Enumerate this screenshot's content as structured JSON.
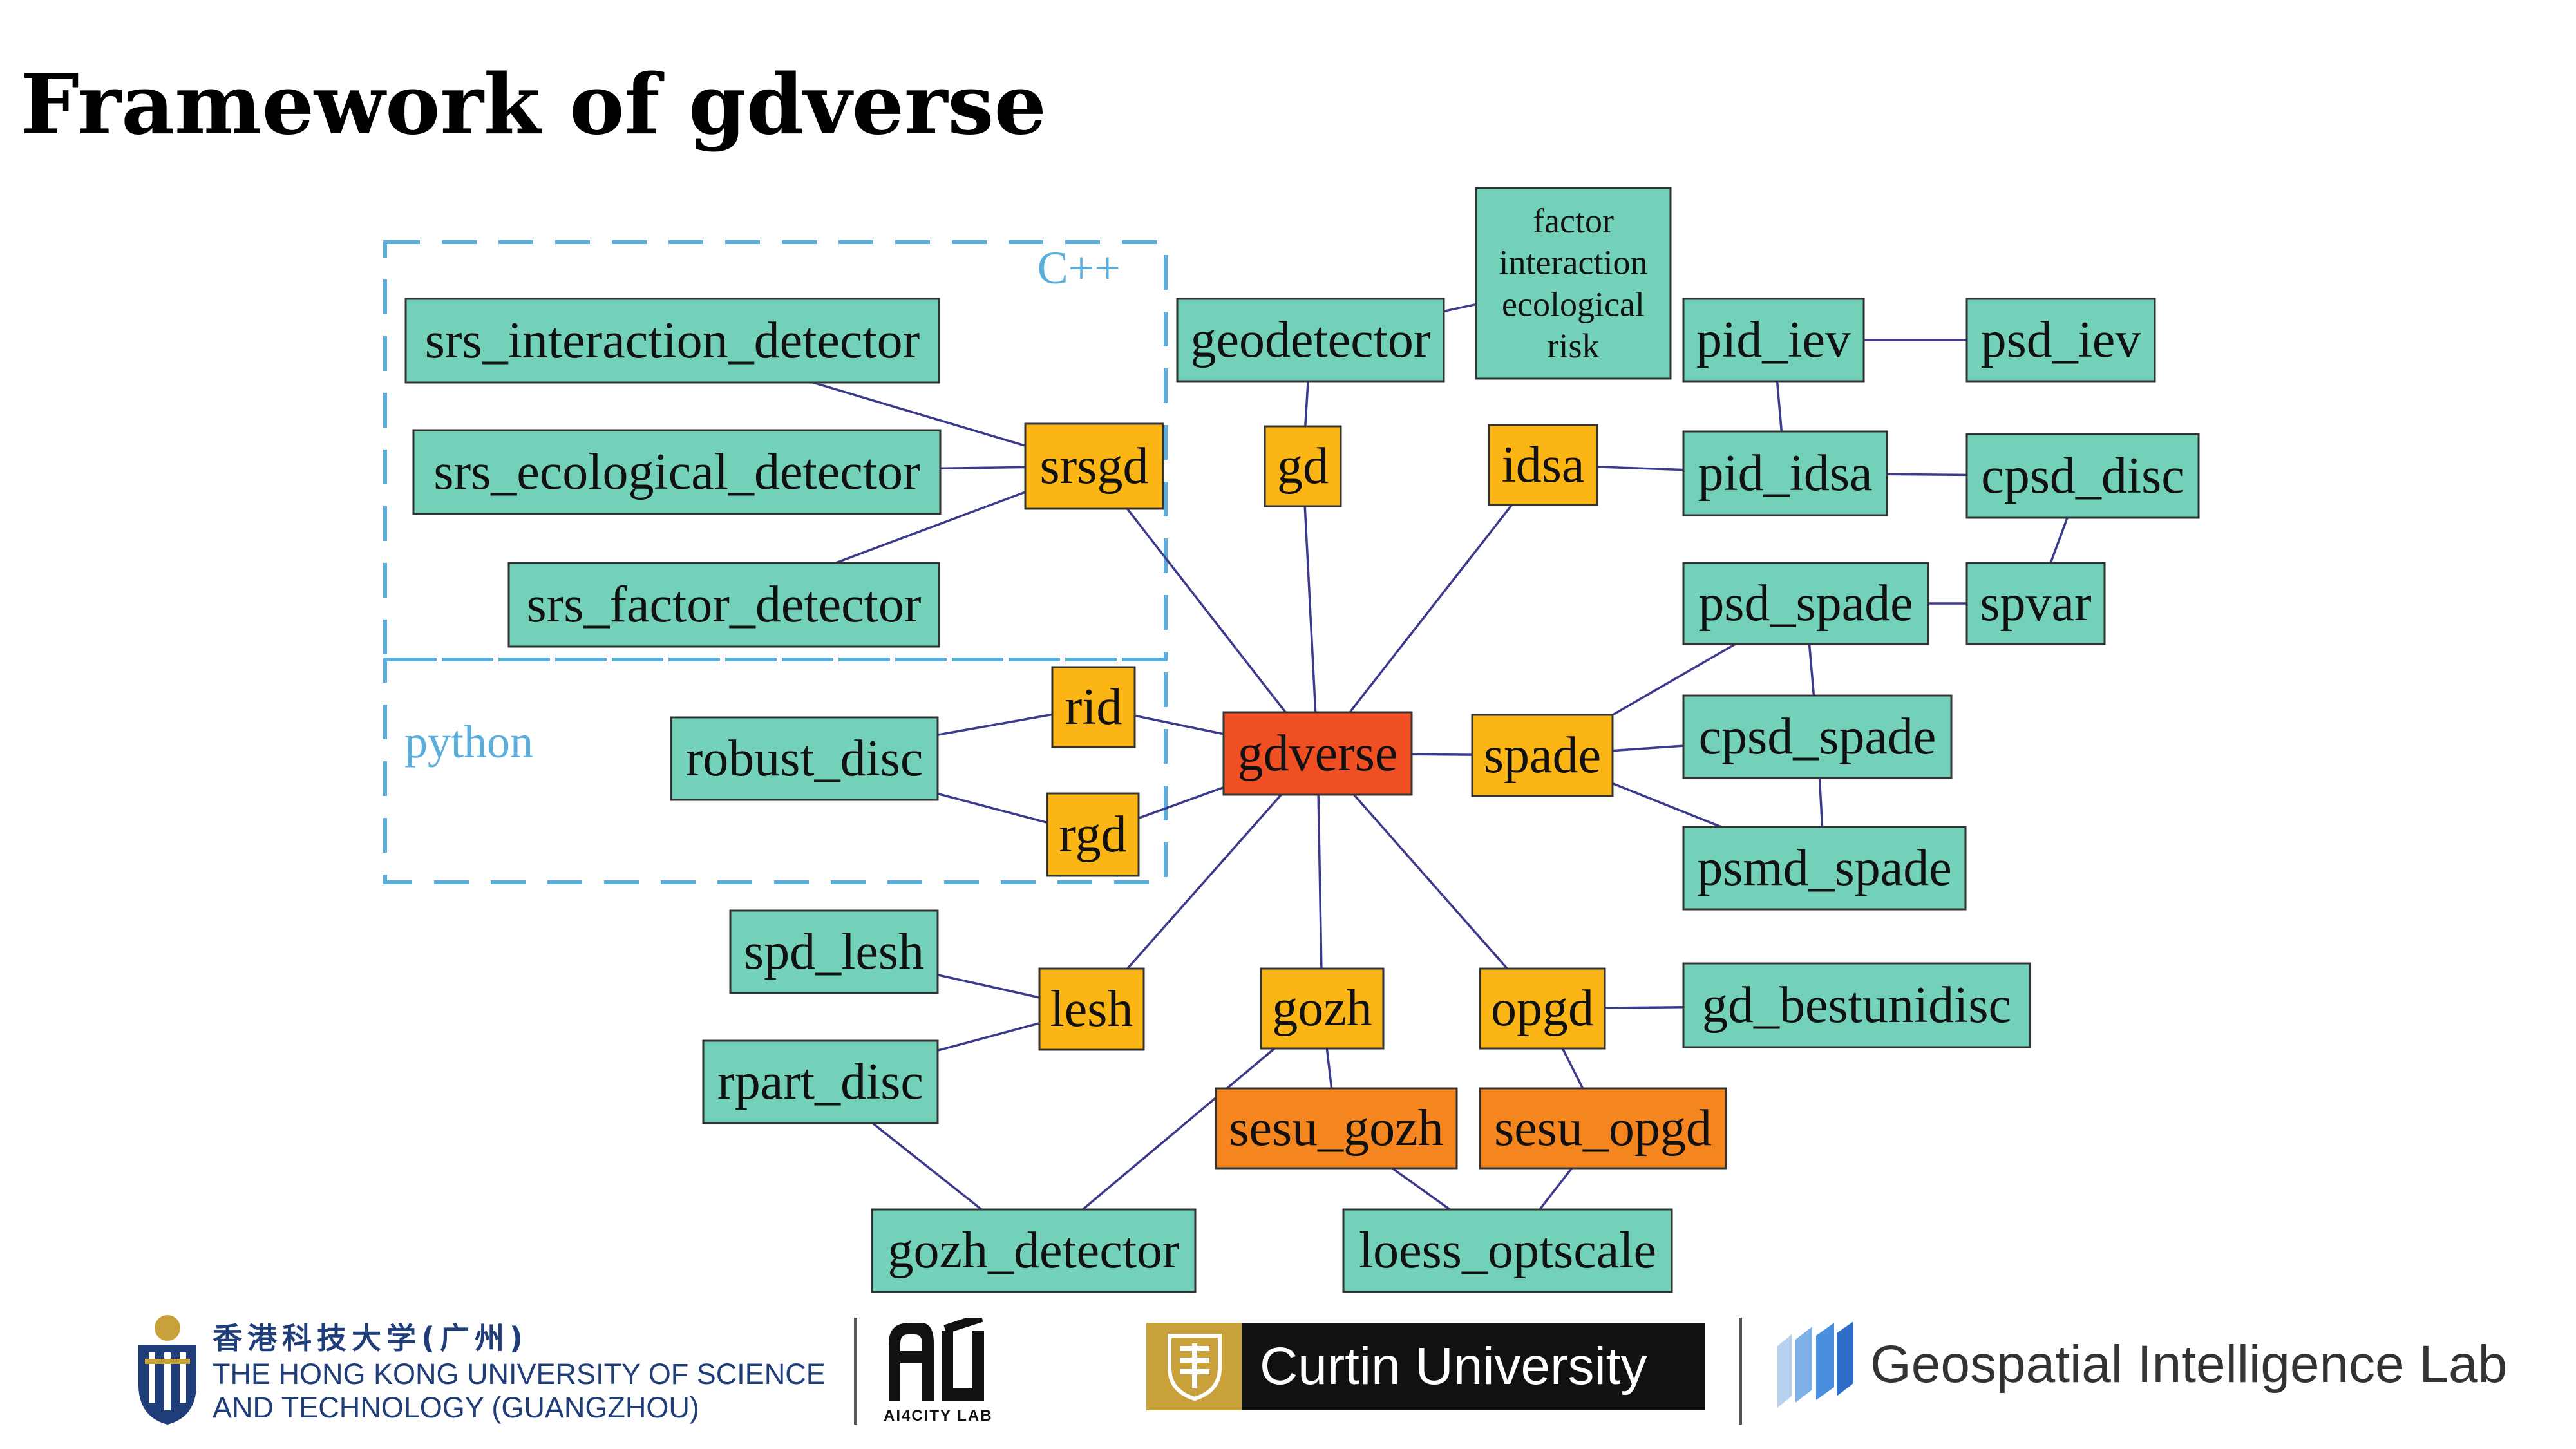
{
  "slide": {
    "title": "Framework of gdverse"
  },
  "diagram": {
    "regions": [
      {
        "id": "cpp",
        "label": "C++",
        "color": "#5aaede"
      },
      {
        "id": "python",
        "label": "python",
        "color": "#5aaede"
      }
    ],
    "node_colors": {
      "teal": "#72d1b8",
      "yellow": "#fbb515",
      "orange": "#f5861f",
      "red": "#f04e23"
    },
    "nodes": [
      {
        "id": "gdverse",
        "label": "gdverse",
        "color": "red"
      },
      {
        "id": "srsgd",
        "label": "srsgd",
        "color": "yellow"
      },
      {
        "id": "gd",
        "label": "gd",
        "color": "yellow"
      },
      {
        "id": "idsa",
        "label": "idsa",
        "color": "yellow"
      },
      {
        "id": "spade",
        "label": "spade",
        "color": "yellow"
      },
      {
        "id": "rid",
        "label": "rid",
        "color": "yellow"
      },
      {
        "id": "rgd",
        "label": "rgd",
        "color": "yellow"
      },
      {
        "id": "lesh",
        "label": "lesh",
        "color": "yellow"
      },
      {
        "id": "gozh",
        "label": "gozh",
        "color": "yellow"
      },
      {
        "id": "opgd",
        "label": "opgd",
        "color": "yellow"
      },
      {
        "id": "sesu_gozh",
        "label": "sesu_gozh",
        "color": "orange"
      },
      {
        "id": "sesu_opgd",
        "label": "sesu_opgd",
        "color": "orange"
      },
      {
        "id": "srs_interaction_detector",
        "label": "srs_interaction_detector",
        "color": "teal"
      },
      {
        "id": "srs_ecological_detector",
        "label": "srs_ecological_detector",
        "color": "teal"
      },
      {
        "id": "srs_factor_detector",
        "label": "srs_factor_detector",
        "color": "teal"
      },
      {
        "id": "geodetector",
        "label": "geodetector",
        "color": "teal"
      },
      {
        "id": "factor_box",
        "label": [
          "factor",
          "interaction",
          "ecological",
          "risk"
        ],
        "color": "teal"
      },
      {
        "id": "pid_iev",
        "label": "pid_iev",
        "color": "teal"
      },
      {
        "id": "psd_iev",
        "label": "psd_iev",
        "color": "teal"
      },
      {
        "id": "pid_idsa",
        "label": "pid_idsa",
        "color": "teal"
      },
      {
        "id": "cpsd_disc",
        "label": "cpsd_disc",
        "color": "teal"
      },
      {
        "id": "psd_spade",
        "label": "psd_spade",
        "color": "teal"
      },
      {
        "id": "spvar",
        "label": "spvar",
        "color": "teal"
      },
      {
        "id": "cpsd_spade",
        "label": "cpsd_spade",
        "color": "teal"
      },
      {
        "id": "psmd_spade",
        "label": "psmd_spade",
        "color": "teal"
      },
      {
        "id": "robust_disc",
        "label": "robust_disc",
        "color": "teal"
      },
      {
        "id": "spd_lesh",
        "label": "spd_lesh",
        "color": "teal"
      },
      {
        "id": "rpart_disc",
        "label": "rpart_disc",
        "color": "teal"
      },
      {
        "id": "gd_bestunidisc",
        "label": "gd_bestunidisc",
        "color": "teal"
      },
      {
        "id": "gozh_detector",
        "label": "gozh_detector",
        "color": "teal"
      },
      {
        "id": "loess_optscale",
        "label": "loess_optscale",
        "color": "teal"
      }
    ],
    "edges": [
      [
        "gdverse",
        "srsgd"
      ],
      [
        "gdverse",
        "gd"
      ],
      [
        "gdverse",
        "idsa"
      ],
      [
        "gdverse",
        "spade"
      ],
      [
        "gdverse",
        "rid"
      ],
      [
        "gdverse",
        "rgd"
      ],
      [
        "gdverse",
        "lesh"
      ],
      [
        "gdverse",
        "gozh"
      ],
      [
        "gdverse",
        "opgd"
      ],
      [
        "srsgd",
        "srs_interaction_detector"
      ],
      [
        "srsgd",
        "srs_ecological_detector"
      ],
      [
        "srsgd",
        "srs_factor_detector"
      ],
      [
        "gd",
        "geodetector"
      ],
      [
        "geodetector",
        "factor_box"
      ],
      [
        "idsa",
        "pid_idsa"
      ],
      [
        "pid_iev",
        "psd_iev"
      ],
      [
        "pid_iev",
        "pid_idsa"
      ],
      [
        "pid_idsa",
        "cpsd_disc"
      ],
      [
        "cpsd_disc",
        "spvar"
      ],
      [
        "psd_spade",
        "spvar"
      ],
      [
        "spade",
        "psd_spade"
      ],
      [
        "spade",
        "cpsd_spade"
      ],
      [
        "spade",
        "psmd_spade"
      ],
      [
        "psd_spade",
        "cpsd_spade"
      ],
      [
        "cpsd_spade",
        "psmd_spade"
      ],
      [
        "rid",
        "robust_disc"
      ],
      [
        "rgd",
        "robust_disc"
      ],
      [
        "lesh",
        "spd_lesh"
      ],
      [
        "lesh",
        "rpart_disc"
      ],
      [
        "rpart_disc",
        "gozh_detector"
      ],
      [
        "gozh",
        "gozh_detector"
      ],
      [
        "gozh",
        "sesu_gozh"
      ],
      [
        "opgd",
        "sesu_opgd"
      ],
      [
        "opgd",
        "gd_bestunidisc"
      ],
      [
        "sesu_gozh",
        "loess_optscale"
      ],
      [
        "sesu_opgd",
        "loess_optscale"
      ]
    ]
  },
  "footer": {
    "hkust": {
      "chinese": "香港科技大学(广州)",
      "line1": "THE HONG KONG UNIVERSITY OF SCIENCE",
      "line2": "AND TECHNOLOGY (GUANGZHOU)",
      "color": "#1f3d78"
    },
    "ai4city": {
      "label": "AI4CITY LAB"
    },
    "curtin": {
      "name": "Curtin University",
      "gold": "#c9a13b"
    },
    "gil": {
      "name": "Geospatial Intelligence Lab",
      "color": "#2f6dc9"
    }
  }
}
